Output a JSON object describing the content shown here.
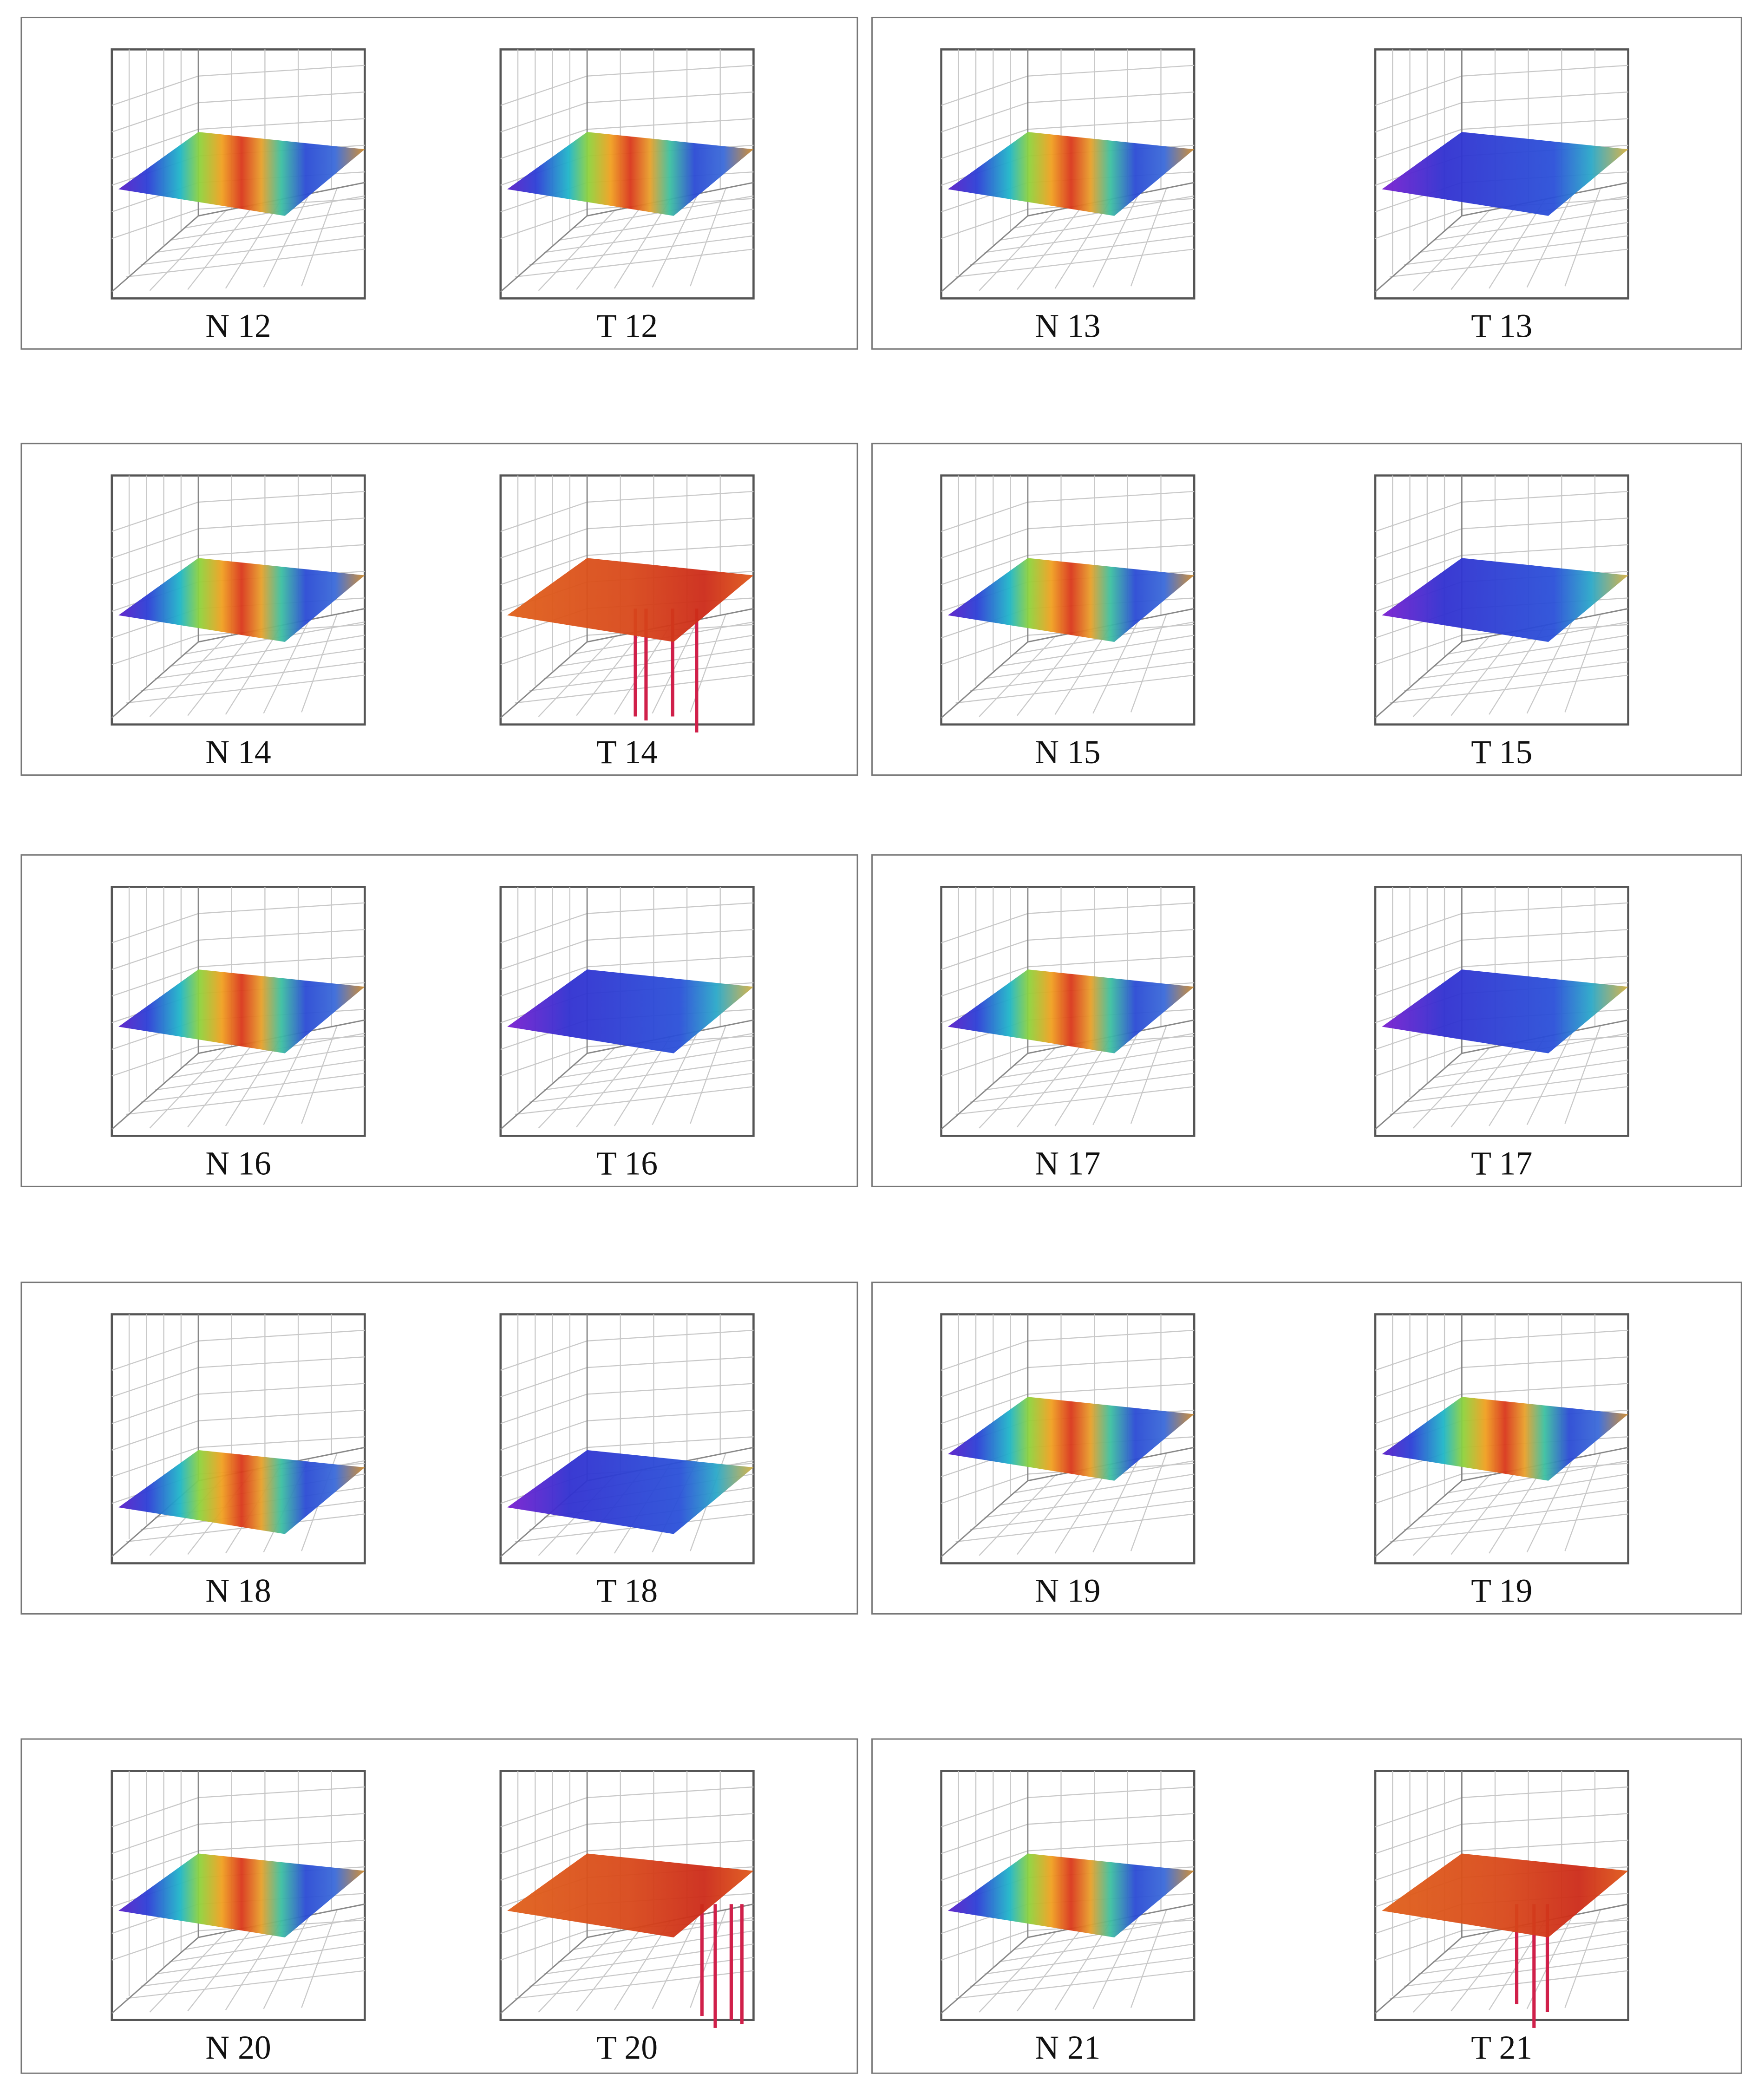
{
  "figure": {
    "panels": [
      {
        "plots": [
          {
            "label": "N 12"
          },
          {
            "label": "T 12"
          }
        ]
      },
      {
        "plots": [
          {
            "label": "N 13"
          },
          {
            "label": "T 13"
          }
        ]
      },
      {
        "plots": [
          {
            "label": "N 14"
          },
          {
            "label": "T 14"
          }
        ]
      },
      {
        "plots": [
          {
            "label": "N 15"
          },
          {
            "label": "T 15"
          }
        ]
      },
      {
        "plots": [
          {
            "label": "N 16"
          },
          {
            "label": "T 16"
          }
        ]
      },
      {
        "plots": [
          {
            "label": "N 17"
          },
          {
            "label": "T 17"
          }
        ]
      },
      {
        "plots": [
          {
            "label": "N 18"
          },
          {
            "label": "T 18"
          }
        ]
      },
      {
        "plots": [
          {
            "label": "N 19"
          },
          {
            "label": "T 19"
          }
        ]
      },
      {
        "plots": [
          {
            "label": "N 20"
          },
          {
            "label": "T 20"
          }
        ]
      },
      {
        "plots": [
          {
            "label": "N 21"
          },
          {
            "label": "T 21"
          }
        ]
      }
    ]
  }
}
